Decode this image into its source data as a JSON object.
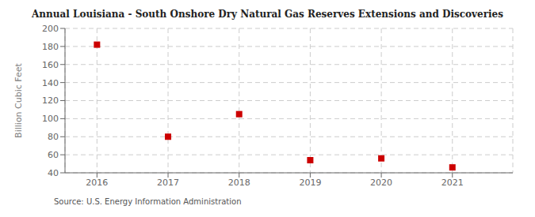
{
  "chart_data": {
    "type": "scatter",
    "title": "Annual Louisiana - South Onshore Dry Natural Gas Reserves Extensions and Discoveries",
    "ylabel": "Billion Cubic Feet",
    "source": "Source: U.S. Energy Information Administration",
    "x": [
      2016,
      2017,
      2018,
      2019,
      2020,
      2021
    ],
    "values": [
      182,
      80,
      105,
      54,
      56,
      46
    ],
    "color": "#cc0000",
    "marker": "square",
    "xlim": [
      2015.55,
      2021.85
    ],
    "xticks": [
      2016,
      2017,
      2018,
      2019,
      2020,
      2021
    ],
    "ylim": [
      40,
      200
    ],
    "yticks": [
      40,
      60,
      80,
      100,
      120,
      140,
      160,
      180,
      200
    ],
    "grid": true
  }
}
